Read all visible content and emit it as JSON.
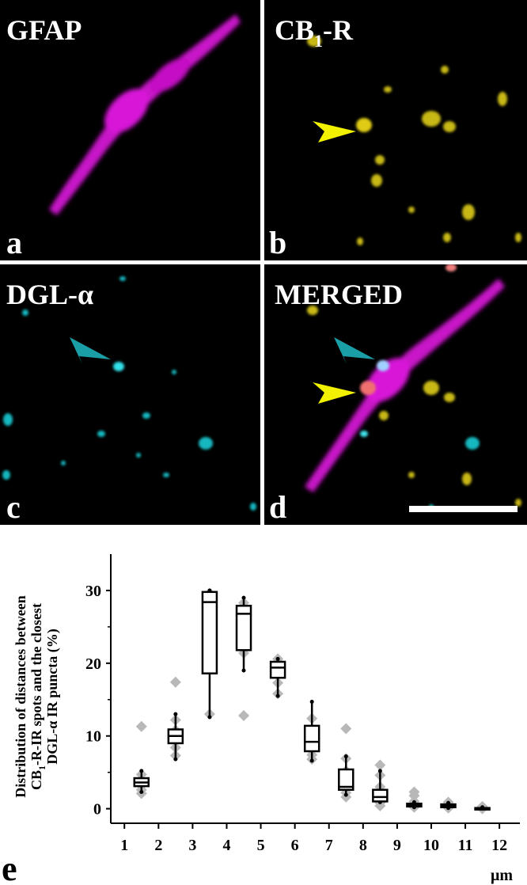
{
  "panels": {
    "a": {
      "title": "GFAP",
      "letter": "a"
    },
    "b": {
      "title_main": "CB",
      "title_sub": "1",
      "title_tail": "-R",
      "letter": "b"
    },
    "c": {
      "title": "DGL-α",
      "letter": "c"
    },
    "d": {
      "title": "MERGED",
      "letter": "d"
    }
  },
  "colors": {
    "gfap": "#d916d9",
    "cb1r": "#e8d81a",
    "dgl": "#20d0d8",
    "arrow_yellow": "#f2f200",
    "arrow_teal": "#1a9fa6",
    "box_fill": "#ffffff",
    "points": "#b8b8b8"
  },
  "chart_data": {
    "type": "box",
    "panel_letter": "e",
    "ylabel_lines": [
      "Distribution of distances between",
      "CB1-R-IR spots and the closest",
      "DGL-α IR puncta (%)"
    ],
    "xunit": "μm",
    "x_ticks": [
      "1",
      "2",
      "3",
      "4",
      "5",
      "6",
      "7",
      "8",
      "9",
      "10",
      "11",
      "12"
    ],
    "y_ticks": [
      "0",
      "10",
      "20",
      "30"
    ],
    "ylim": [
      -2,
      35
    ],
    "xlim": [
      0.6,
      12.6
    ],
    "boxes": [
      {
        "x": 1.5,
        "whisker_low": 2.3,
        "q1": 3.1,
        "median": 3.6,
        "q3": 4.2,
        "whisker_high": 5.2,
        "points": [
          11.3,
          4.7,
          4.0,
          3.6,
          3.2,
          2.6,
          2.1
        ]
      },
      {
        "x": 2.5,
        "whisker_low": 6.8,
        "q1": 9.0,
        "median": 10.0,
        "q3": 10.9,
        "whisker_high": 13.0,
        "points": [
          17.4,
          12.2,
          10.8,
          10.1,
          9.5,
          8.4,
          7.3
        ]
      },
      {
        "x": 3.5,
        "whisker_low": 12.6,
        "q1": 18.6,
        "median": 28.4,
        "q3": 29.8,
        "whisker_high": 30.0,
        "points": [
          29.6,
          29.2,
          28.6,
          25.4,
          20.0,
          13.0
        ]
      },
      {
        "x": 4.5,
        "whisker_low": 19.0,
        "q1": 21.8,
        "median": 26.8,
        "q3": 27.9,
        "whisker_high": 29.0,
        "points": [
          28.3,
          27.5,
          25.6,
          24.6,
          21.4,
          12.8
        ]
      },
      {
        "x": 5.5,
        "whisker_low": 15.5,
        "q1": 18.0,
        "median": 19.4,
        "q3": 20.2,
        "whisker_high": 20.6,
        "points": [
          20.6,
          20.2,
          19.7,
          19.0,
          17.3,
          15.8
        ]
      },
      {
        "x": 6.5,
        "whisker_low": 6.6,
        "q1": 7.9,
        "median": 9.2,
        "q3": 11.4,
        "whisker_high": 14.7,
        "points": [
          12.4,
          10.6,
          9.6,
          8.8,
          7.4,
          6.8
        ]
      },
      {
        "x": 7.5,
        "whisker_low": 1.9,
        "q1": 2.6,
        "median": 3.0,
        "q3": 5.4,
        "whisker_high": 7.2,
        "points": [
          11.0,
          6.9,
          5.2,
          3.8,
          2.8,
          2.2,
          1.6
        ]
      },
      {
        "x": 8.5,
        "whisker_low": 0.9,
        "q1": 1.0,
        "median": 1.6,
        "q3": 2.6,
        "whisker_high": 5.2,
        "points": [
          6.0,
          4.6,
          3.0,
          2.0,
          1.4,
          0.8,
          0.4
        ]
      },
      {
        "x": 9.5,
        "whisker_low": 0.2,
        "q1": 0.3,
        "median": 0.5,
        "q3": 0.7,
        "whisker_high": 0.9,
        "points": [
          2.3,
          1.8,
          1.0,
          0.6,
          0.4,
          0.2
        ]
      },
      {
        "x": 10.5,
        "whisker_low": 0.1,
        "q1": 0.2,
        "median": 0.4,
        "q3": 0.6,
        "whisker_high": 0.8,
        "points": [
          0.9,
          0.6,
          0.4,
          0.3,
          0.1
        ]
      },
      {
        "x": 11.5,
        "whisker_low": 0.0,
        "q1": 0.0,
        "median": 0.1,
        "q3": 0.1,
        "whisker_high": 0.2,
        "points": [
          0.3,
          0.2,
          0.1,
          0.0
        ]
      }
    ]
  }
}
